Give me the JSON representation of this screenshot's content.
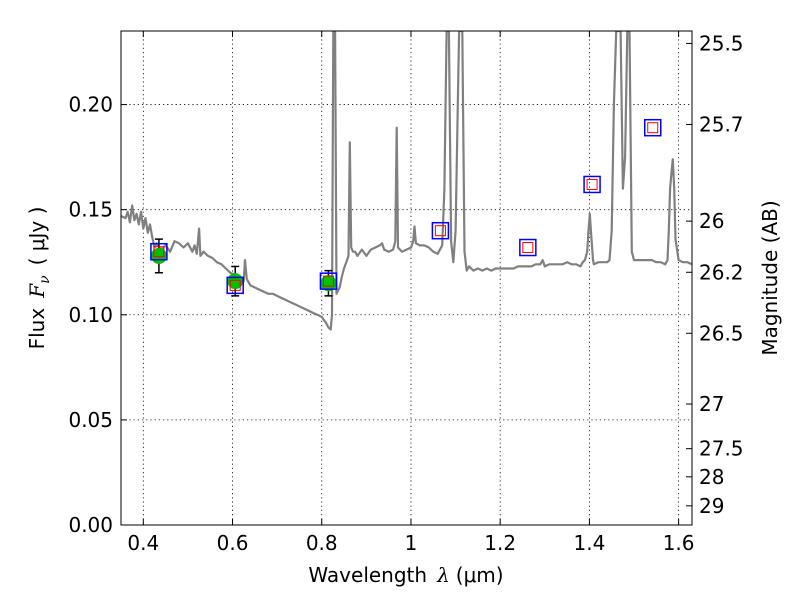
{
  "chart_data": {
    "type": "line",
    "xlabel": {
      "prefix": "Wavelength",
      "symbol": "λ",
      "unit": "(μm)"
    },
    "ylabel": {
      "prefix": "Flux",
      "symbol": "F",
      "subscript": "ν",
      "unit": "( μJy )"
    },
    "y2label": "Magnitude (AB)",
    "xlim": [
      0.35,
      1.63
    ],
    "ylim": [
      0.0,
      0.235
    ],
    "grid": true,
    "x_ticks": [
      {
        "value": 0.4,
        "label": "0.4"
      },
      {
        "value": 0.6,
        "label": "0.6"
      },
      {
        "value": 0.8,
        "label": "0.8"
      },
      {
        "value": 1.0,
        "label": "1"
      },
      {
        "value": 1.2,
        "label": "1.2"
      },
      {
        "value": 1.4,
        "label": "1.4"
      },
      {
        "value": 1.6,
        "label": "1.6"
      }
    ],
    "y_ticks": [
      {
        "value": 0.0,
        "label": "0.00"
      },
      {
        "value": 0.05,
        "label": "0.05"
      },
      {
        "value": 0.1,
        "label": "0.10"
      },
      {
        "value": 0.15,
        "label": "0.15"
      },
      {
        "value": 0.2,
        "label": "0.20"
      }
    ],
    "y2_ticks": [
      {
        "mag": 25.5,
        "label": "25.5"
      },
      {
        "mag": 25.7,
        "label": "25.7"
      },
      {
        "mag": 26,
        "label": "26"
      },
      {
        "mag": 26.2,
        "label": "26.2"
      },
      {
        "mag": 26.5,
        "label": "26.5"
      },
      {
        "mag": 27,
        "label": "27"
      },
      {
        "mag": 27.5,
        "label": "27.5"
      },
      {
        "mag": 28,
        "label": "28"
      },
      {
        "mag": 29,
        "label": "29"
      }
    ],
    "model_spectrum": {
      "color": "#808080",
      "points": [
        [
          0.35,
          0.147
        ],
        [
          0.36,
          0.146
        ],
        [
          0.365,
          0.149
        ],
        [
          0.37,
          0.144
        ],
        [
          0.375,
          0.152
        ],
        [
          0.38,
          0.145
        ],
        [
          0.385,
          0.148
        ],
        [
          0.39,
          0.143
        ],
        [
          0.395,
          0.149
        ],
        [
          0.4,
          0.141
        ],
        [
          0.405,
          0.146
        ],
        [
          0.41,
          0.139
        ],
        [
          0.415,
          0.143
        ],
        [
          0.42,
          0.137
        ],
        [
          0.425,
          0.132
        ],
        [
          0.43,
          0.134
        ],
        [
          0.44,
          0.131
        ],
        [
          0.45,
          0.133
        ],
        [
          0.46,
          0.13
        ],
        [
          0.47,
          0.135
        ],
        [
          0.48,
          0.134
        ],
        [
          0.49,
          0.132
        ],
        [
          0.5,
          0.134
        ],
        [
          0.51,
          0.13
        ],
        [
          0.515,
          0.133
        ],
        [
          0.52,
          0.129
        ],
        [
          0.525,
          0.141
        ],
        [
          0.528,
          0.128
        ],
        [
          0.535,
          0.13
        ],
        [
          0.545,
          0.128
        ],
        [
          0.555,
          0.127
        ],
        [
          0.565,
          0.125
        ],
        [
          0.575,
          0.124
        ],
        [
          0.585,
          0.122
        ],
        [
          0.595,
          0.12
        ],
        [
          0.605,
          0.119
        ],
        [
          0.615,
          0.118
        ],
        [
          0.62,
          0.117
        ],
        [
          0.625,
          0.116
        ],
        [
          0.628,
          0.126
        ],
        [
          0.632,
          0.117
        ],
        [
          0.64,
          0.114
        ],
        [
          0.65,
          0.113
        ],
        [
          0.66,
          0.112
        ],
        [
          0.67,
          0.111
        ],
        [
          0.68,
          0.11
        ],
        [
          0.69,
          0.11
        ],
        [
          0.7,
          0.109
        ],
        [
          0.71,
          0.108
        ],
        [
          0.72,
          0.107
        ],
        [
          0.73,
          0.106
        ],
        [
          0.74,
          0.105
        ],
        [
          0.75,
          0.104
        ],
        [
          0.76,
          0.103
        ],
        [
          0.77,
          0.102
        ],
        [
          0.78,
          0.101
        ],
        [
          0.79,
          0.1
        ],
        [
          0.8,
          0.099
        ],
        [
          0.81,
          0.096
        ],
        [
          0.815,
          0.094
        ],
        [
          0.82,
          0.093
        ],
        [
          0.823,
          0.1
        ],
        [
          0.826,
          0.235
        ],
        [
          0.83,
          0.235
        ],
        [
          0.833,
          0.11
        ],
        [
          0.84,
          0.113
        ],
        [
          0.845,
          0.118
        ],
        [
          0.85,
          0.122
        ],
        [
          0.855,
          0.125
        ],
        [
          0.86,
          0.128
        ],
        [
          0.863,
          0.182
        ],
        [
          0.866,
          0.132
        ],
        [
          0.87,
          0.13
        ],
        [
          0.875,
          0.13
        ],
        [
          0.88,
          0.128
        ],
        [
          0.89,
          0.131
        ],
        [
          0.9,
          0.128
        ],
        [
          0.91,
          0.131
        ],
        [
          0.92,
          0.132
        ],
        [
          0.93,
          0.133
        ],
        [
          0.935,
          0.134
        ],
        [
          0.94,
          0.131
        ],
        [
          0.95,
          0.13
        ],
        [
          0.96,
          0.131
        ],
        [
          0.965,
          0.135
        ],
        [
          0.968,
          0.189
        ],
        [
          0.971,
          0.132
        ],
        [
          0.98,
          0.13
        ],
        [
          0.99,
          0.131
        ],
        [
          1.0,
          0.132
        ],
        [
          1.005,
          0.135
        ],
        [
          1.008,
          0.142
        ],
        [
          1.011,
          0.134
        ],
        [
          1.02,
          0.133
        ],
        [
          1.03,
          0.133
        ],
        [
          1.04,
          0.132
        ],
        [
          1.05,
          0.13
        ],
        [
          1.06,
          0.129
        ],
        [
          1.07,
          0.133
        ],
        [
          1.075,
          0.16
        ],
        [
          1.08,
          0.235
        ],
        [
          1.085,
          0.235
        ],
        [
          1.09,
          0.135
        ],
        [
          1.095,
          0.125
        ],
        [
          1.1,
          0.14
        ],
        [
          1.105,
          0.2
        ],
        [
          1.108,
          0.235
        ],
        [
          1.115,
          0.235
        ],
        [
          1.12,
          0.13
        ],
        [
          1.125,
          0.121
        ],
        [
          1.13,
          0.123
        ],
        [
          1.14,
          0.121
        ],
        [
          1.15,
          0.122
        ],
        [
          1.16,
          0.121
        ],
        [
          1.17,
          0.122
        ],
        [
          1.18,
          0.121
        ],
        [
          1.19,
          0.122
        ],
        [
          1.2,
          0.122
        ],
        [
          1.21,
          0.122
        ],
        [
          1.22,
          0.122
        ],
        [
          1.23,
          0.122
        ],
        [
          1.24,
          0.123
        ],
        [
          1.25,
          0.123
        ],
        [
          1.26,
          0.123
        ],
        [
          1.27,
          0.123
        ],
        [
          1.28,
          0.124
        ],
        [
          1.29,
          0.124
        ],
        [
          1.295,
          0.126
        ],
        [
          1.3,
          0.123
        ],
        [
          1.31,
          0.124
        ],
        [
          1.32,
          0.124
        ],
        [
          1.33,
          0.124
        ],
        [
          1.34,
          0.124
        ],
        [
          1.35,
          0.125
        ],
        [
          1.36,
          0.124
        ],
        [
          1.37,
          0.124
        ],
        [
          1.38,
          0.123
        ],
        [
          1.385,
          0.125
        ],
        [
          1.39,
          0.126
        ],
        [
          1.395,
          0.13
        ],
        [
          1.398,
          0.14
        ],
        [
          1.401,
          0.148
        ],
        [
          1.404,
          0.138
        ],
        [
          1.408,
          0.126
        ],
        [
          1.41,
          0.124
        ],
        [
          1.42,
          0.125
        ],
        [
          1.43,
          0.125
        ],
        [
          1.44,
          0.125
        ],
        [
          1.445,
          0.126
        ],
        [
          1.45,
          0.14
        ],
        [
          1.455,
          0.2
        ],
        [
          1.46,
          0.235
        ],
        [
          1.47,
          0.235
        ],
        [
          1.475,
          0.16
        ],
        [
          1.48,
          0.175
        ],
        [
          1.485,
          0.235
        ],
        [
          1.49,
          0.235
        ],
        [
          1.495,
          0.13
        ],
        [
          1.5,
          0.126
        ],
        [
          1.51,
          0.126
        ],
        [
          1.52,
          0.126
        ],
        [
          1.53,
          0.126
        ],
        [
          1.54,
          0.126
        ],
        [
          1.55,
          0.125
        ],
        [
          1.56,
          0.125
        ],
        [
          1.57,
          0.124
        ],
        [
          1.575,
          0.126
        ],
        [
          1.578,
          0.14
        ],
        [
          1.581,
          0.16
        ],
        [
          1.584,
          0.168
        ],
        [
          1.587,
          0.174
        ],
        [
          1.59,
          0.16
        ],
        [
          1.593,
          0.136
        ],
        [
          1.6,
          0.126
        ],
        [
          1.61,
          0.125
        ],
        [
          1.62,
          0.125
        ],
        [
          1.63,
          0.124
        ]
      ]
    },
    "observed_points": {
      "color": "#00c000",
      "points": [
        {
          "x": 0.435,
          "y": 0.128,
          "yerr": 0.008
        },
        {
          "x": 0.606,
          "y": 0.116,
          "yerr": 0.007
        },
        {
          "x": 0.815,
          "y": 0.115,
          "yerr": 0.006
        }
      ]
    },
    "model_photometry": {
      "outer_color": "#0000ff",
      "inner_color": "#ff0000",
      "points": [
        {
          "x": 0.435,
          "y": 0.13
        },
        {
          "x": 0.606,
          "y": 0.114
        },
        {
          "x": 0.815,
          "y": 0.116
        },
        {
          "x": 1.066,
          "y": 0.14
        },
        {
          "x": 1.262,
          "y": 0.132
        },
        {
          "x": 1.406,
          "y": 0.162
        },
        {
          "x": 1.542,
          "y": 0.189
        }
      ]
    }
  }
}
